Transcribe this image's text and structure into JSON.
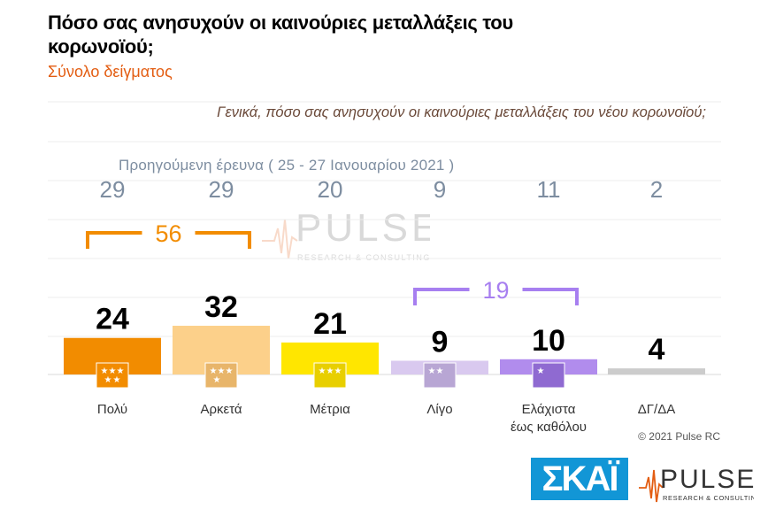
{
  "header": {
    "title": "Πόσο σας ανησυχούν οι καινούριες μεταλλάξεις του κορωνοϊού;",
    "subtitle": "Σύνολο δείγματος"
  },
  "question": "Γενικά, πόσο σας ανησυχούν οι καινούριες μεταλλάξεις του νέου κορωνοϊού;",
  "previous_survey_label": "Προηγούμενη έρευνα ( 25 - 27 Ιανουαρίου 2021 )",
  "chart_data": {
    "type": "bar",
    "categories": [
      "Πολύ",
      "Αρκετά",
      "Μέτρια",
      "Λίγο",
      "Ελάχιστα έως καθόλου",
      "ΔΓ/ΔΑ"
    ],
    "category_lines": [
      [
        "Πολύ"
      ],
      [
        "Αρκετά"
      ],
      [
        "Μέτρια"
      ],
      [
        "Λίγο"
      ],
      [
        "Ελάχιστα",
        "έως καθόλου"
      ],
      [
        "ΔΓ/ΔΑ"
      ]
    ],
    "values": [
      24,
      32,
      21,
      9,
      10,
      4
    ],
    "previous_values": [
      29,
      29,
      20,
      9,
      11,
      2
    ],
    "colors": [
      "#f28c00",
      "#fcd08a",
      "#ffe600",
      "#d9c9ef",
      "#b18ced",
      "#cccccc"
    ],
    "icon_colors": [
      "#f28c00",
      "#e8b56a",
      "#e8cf00",
      "#b8a6d4",
      "#8f6ad1",
      null
    ],
    "groups": [
      {
        "value": 56,
        "from": 0,
        "to": 1,
        "color": "#f28c00"
      },
      {
        "value": 19,
        "from": 3,
        "to": 4,
        "color": "#a77ff0"
      }
    ],
    "grid": true
  },
  "copyright": "© 2021 Pulse RC",
  "logos": {
    "skai": "ΣΚΑΪ",
    "pulse": "PULSE",
    "pulse_tagline": "RESEARCH & CONSULTING"
  }
}
